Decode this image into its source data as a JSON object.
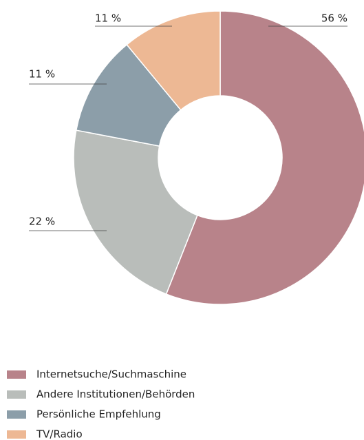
{
  "chart_data": {
    "type": "donut",
    "categories": [
      "Internetsuche/Suchmaschine",
      "Andere Institutionen/Behörden",
      "Persönliche Empfehlung",
      "TV/Radio"
    ],
    "values": [
      56,
      22,
      11,
      11
    ],
    "value_labels": [
      "56 %",
      "22 %",
      "11 %",
      "11 %"
    ],
    "colors": [
      "#b8838a",
      "#b9bdba",
      "#8c9ea9",
      "#edb894"
    ],
    "legend": "bottom-left"
  }
}
